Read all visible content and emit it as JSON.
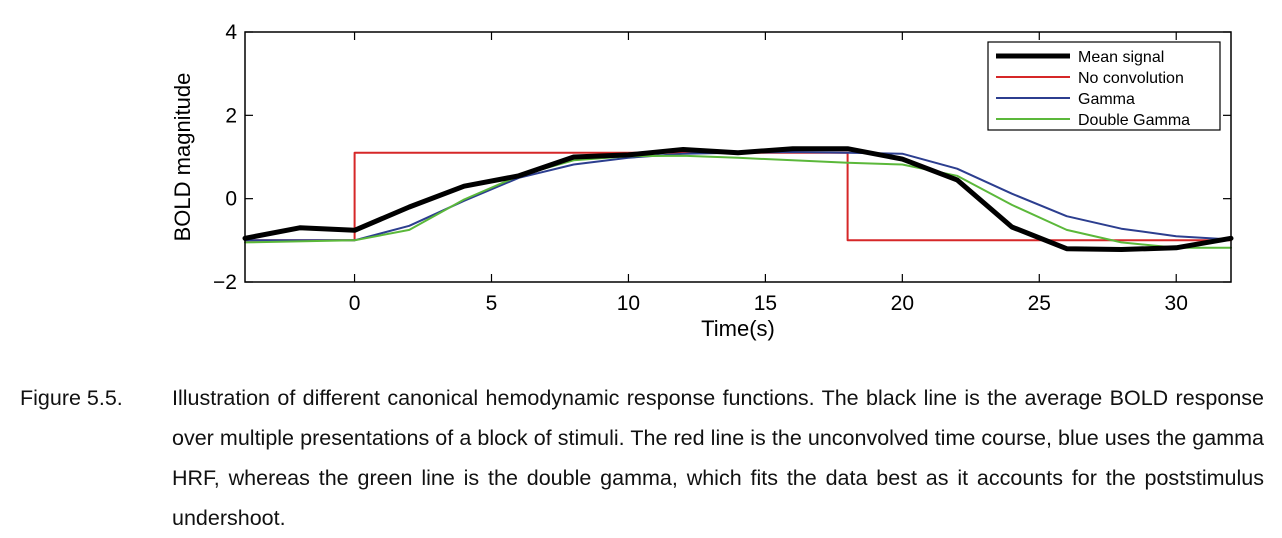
{
  "chart_data": {
    "type": "line",
    "xlabel": "Time(s)",
    "ylabel": "BOLD magnitude",
    "xlim": [
      -4,
      32
    ],
    "ylim": [
      -2,
      4
    ],
    "xticks": [
      0,
      5,
      10,
      15,
      20,
      25,
      30
    ],
    "yticks": [
      -2,
      0,
      2,
      4
    ],
    "grid": false,
    "legend_position": "top-right",
    "series": [
      {
        "name": "Mean signal",
        "color": "#000000",
        "x": [
          -4,
          -2,
          0,
          2,
          4,
          6,
          8,
          10,
          12,
          14,
          16,
          18,
          20,
          22,
          24,
          26,
          28,
          30,
          32
        ],
        "y": [
          -0.95,
          -0.7,
          -0.76,
          -0.2,
          0.3,
          0.55,
          1.0,
          1.05,
          1.18,
          1.1,
          1.2,
          1.2,
          0.95,
          0.45,
          -0.68,
          -1.2,
          -1.22,
          -1.18,
          -0.95
        ]
      },
      {
        "name": "No convolution",
        "color": "#d62728",
        "x": [
          -4,
          0,
          0,
          18,
          18,
          32
        ],
        "y": [
          -1,
          -1,
          1.1,
          1.1,
          -1,
          -1
        ]
      },
      {
        "name": "Gamma",
        "color": "#2c3e8f",
        "x": [
          -4,
          0,
          2,
          4,
          6,
          8,
          10,
          12,
          14,
          16,
          18,
          20,
          22,
          24,
          26,
          28,
          30,
          32
        ],
        "y": [
          -1.0,
          -1.0,
          -0.65,
          -0.05,
          0.5,
          0.82,
          0.98,
          1.08,
          1.1,
          1.12,
          1.1,
          1.08,
          0.72,
          0.12,
          -0.42,
          -0.72,
          -0.9,
          -0.98
        ]
      },
      {
        "name": "Double Gamma",
        "color": "#5bb83a",
        "x": [
          -4,
          0,
          2,
          4,
          6,
          8,
          10,
          12,
          14,
          16,
          18,
          20,
          22,
          24,
          26,
          28,
          30,
          32
        ],
        "y": [
          -1.05,
          -1.0,
          -0.75,
          -0.02,
          0.55,
          0.92,
          1.02,
          1.03,
          0.98,
          0.92,
          0.86,
          0.82,
          0.55,
          -0.15,
          -0.75,
          -1.05,
          -1.18,
          -1.18
        ]
      }
    ]
  },
  "caption": {
    "number": "Figure 5.5.",
    "text": "Illustration of different canonical hemodynamic response functions. The black line is the average BOLD response over multiple presentations of a block of stimuli. The red line is the unconvolved time course, blue uses the gamma HRF, whereas the green line is the double gamma, which fits the data best as it accounts for the poststimulus undershoot."
  }
}
